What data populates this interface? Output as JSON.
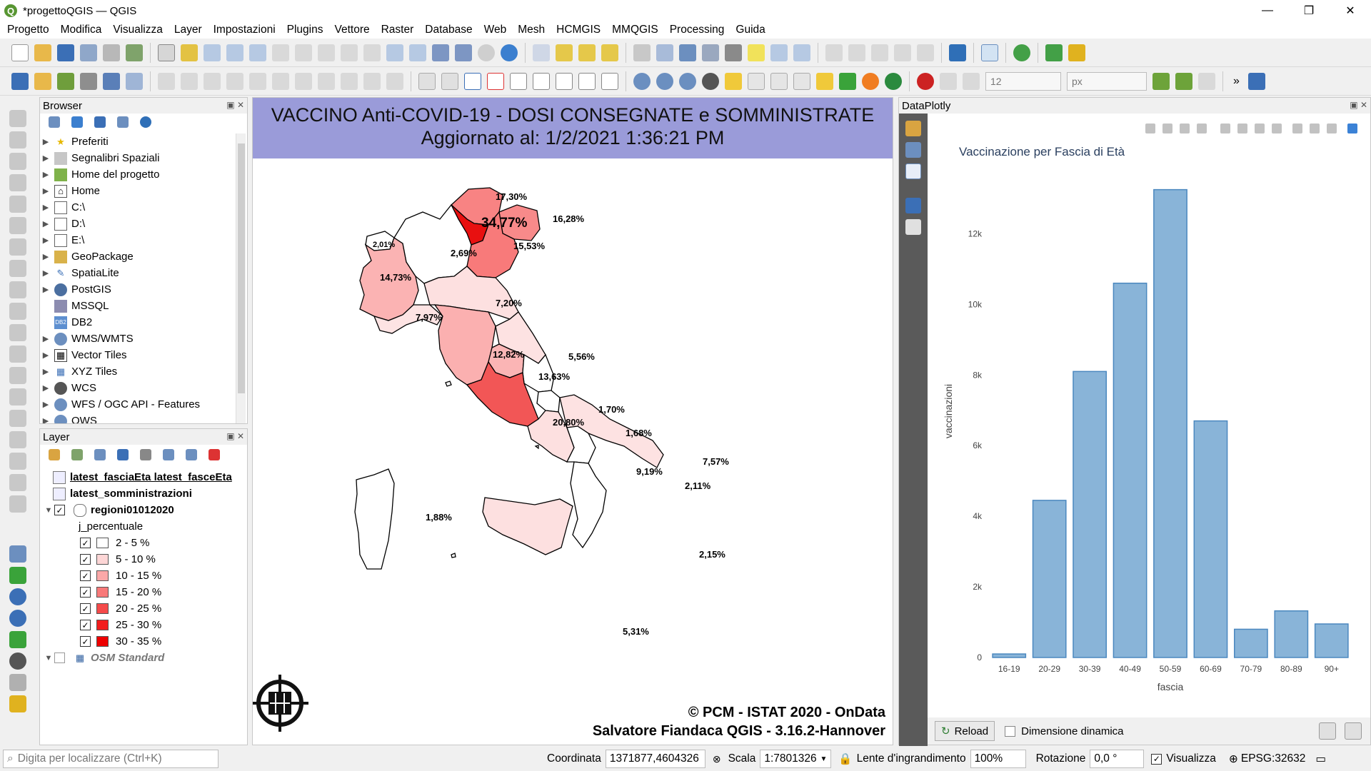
{
  "window": {
    "title": "*progettoQGIS — QGIS",
    "controls": [
      "—",
      "❐",
      "✕"
    ]
  },
  "menu": [
    "Progetto",
    "Modifica",
    "Visualizza",
    "Layer",
    "Impostazioni",
    "Plugins",
    "Vettore",
    "Raster",
    "Database",
    "Web",
    "Mesh",
    "HCMGIS",
    "MMQGIS",
    "Processing",
    "Guida"
  ],
  "toolbar2": {
    "size_value": "12",
    "unit_value": "px"
  },
  "browser": {
    "title": "Browser",
    "items": [
      {
        "label": "Preferiti",
        "icon": "star-icon"
      },
      {
        "label": "Segnalibri Spaziali",
        "icon": "bookmark-icon"
      },
      {
        "label": "Home del progetto",
        "icon": "project-home-icon"
      },
      {
        "label": "Home",
        "icon": "home-icon"
      },
      {
        "label": "C:\\",
        "icon": "folder-icon"
      },
      {
        "label": "D:\\",
        "icon": "folder-icon"
      },
      {
        "label": "E:\\",
        "icon": "folder-icon"
      },
      {
        "label": "GeoPackage",
        "icon": "geopackage-icon"
      },
      {
        "label": "SpatiaLite",
        "icon": "spatialite-icon"
      },
      {
        "label": "PostGIS",
        "icon": "postgis-icon"
      },
      {
        "label": "MSSQL",
        "icon": "mssql-icon"
      },
      {
        "label": "DB2",
        "icon": "db2-icon"
      },
      {
        "label": "WMS/WMTS",
        "icon": "wms-icon"
      },
      {
        "label": "Vector Tiles",
        "icon": "vector-tiles-icon"
      },
      {
        "label": "XYZ Tiles",
        "icon": "xyz-tiles-icon"
      },
      {
        "label": "WCS",
        "icon": "wcs-icon"
      },
      {
        "label": "WFS / OGC API - Features",
        "icon": "wfs-icon"
      },
      {
        "label": "OWS",
        "icon": "ows-icon"
      }
    ]
  },
  "layers": {
    "title": "Layer",
    "rows": [
      {
        "label": "latest_fasciaEta latest_fasceEta"
      },
      {
        "label": "latest_somministrazioni"
      },
      {
        "label": "regioni01012020"
      },
      {
        "label": "j_percentuale"
      },
      {
        "label": "2 - 5 %",
        "color": "#ffffff"
      },
      {
        "label": "5 - 10 %",
        "color": "#fdd6d6"
      },
      {
        "label": "10 - 15 %",
        "color": "#fba8a8"
      },
      {
        "label": "15 - 20 %",
        "color": "#f87979"
      },
      {
        "label": "20 - 25 %",
        "color": "#f54a4a"
      },
      {
        "label": "25 - 30 %",
        "color": "#f21d1d"
      },
      {
        "label": "30 - 35 %",
        "color": "#ee0000"
      },
      {
        "label": "OSM Standard"
      }
    ]
  },
  "map": {
    "title_line1": "VACCINO Anti-COVID-19 - DOSI CONSEGNATE e SOMMINISTRATE",
    "title_line2": "Aggiornato al: 1/2/2021 1:36:21 PM",
    "credits_line1": "© PCM - ISTAT 2020 - OnData",
    "credits_line2": "Salvatore Fiandaca QGIS - 3.16.2-Hannover",
    "regions": [
      {
        "label": "17,30%"
      },
      {
        "label": "34,77%"
      },
      {
        "label": "16,28%"
      },
      {
        "label": "15,53%"
      },
      {
        "label": "2,01%"
      },
      {
        "label": "2,69%"
      },
      {
        "label": "14,73%"
      },
      {
        "label": "7,97%"
      },
      {
        "label": "7,20%"
      },
      {
        "label": "12,82%"
      },
      {
        "label": "5,56%"
      },
      {
        "label": "13,63%"
      },
      {
        "label": "1,70%"
      },
      {
        "label": "20,80%"
      },
      {
        "label": "1,68%"
      },
      {
        "label": "7,57%"
      },
      {
        "label": "9,19%"
      },
      {
        "label": "2,11%"
      },
      {
        "label": "1,88%"
      },
      {
        "label": "2,15%"
      },
      {
        "label": "5,31%"
      }
    ]
  },
  "dataplotly": {
    "title": "DataPlotly",
    "reload_label": "Reload",
    "dynamic_label": "Dimensione dinamica"
  },
  "chart_data": {
    "type": "bar",
    "title": "Vaccinazione per Fascia di Età",
    "xlabel": "fascia",
    "ylabel": "vaccinazioni",
    "categories": [
      "16-19",
      "20-29",
      "30-39",
      "40-49",
      "50-59",
      "60-69",
      "70-79",
      "80-89",
      "90+"
    ],
    "values": [
      100,
      4450,
      8100,
      10600,
      13250,
      6700,
      800,
      1320,
      950
    ],
    "ylim": [
      0,
      13950
    ],
    "yticks": [
      0,
      2000,
      4000,
      6000,
      8000,
      10000,
      12000
    ],
    "ytick_labels": [
      "0",
      "2k",
      "4k",
      "6k",
      "8k",
      "10k",
      "12k"
    ],
    "bar_color": "#89b4d8",
    "bar_edge": "#4b88bf",
    "grid": false
  },
  "status": {
    "search_placeholder": "Digita per localizzare (Ctrl+K)",
    "coord_label": "Coordinata",
    "coord_value": "1371877,4604326",
    "scale_label": "Scala",
    "scale_value": "1:7801326",
    "mag_label": "Lente d'ingrandimento",
    "mag_value": "100%",
    "rot_label": "Rotazione",
    "rot_value": "0,0 °",
    "render_label": "Visualizza",
    "epsg": "EPSG:32632"
  }
}
